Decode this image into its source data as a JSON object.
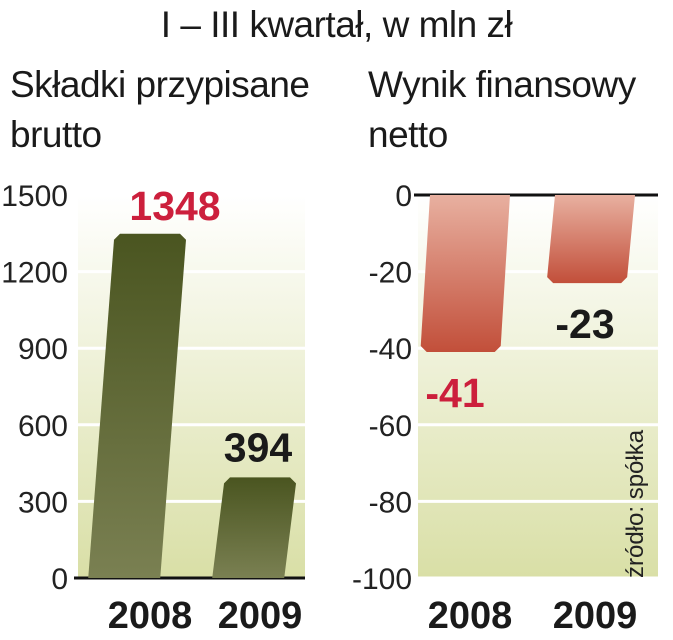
{
  "title": "I – III kwartał, w mln zł",
  "source": "źródło: spółka",
  "colors": {
    "dark_bar": "#5c6a2e",
    "red_bar": "#c85a46",
    "highlight_label": "#cc1f3c",
    "normal_label": "#1a1a1a"
  },
  "chart_data": [
    {
      "type": "bar",
      "title_line1": "Składki przypisane",
      "title_line2": "brutto",
      "categories": [
        "2008",
        "2009"
      ],
      "values": [
        1348,
        394
      ],
      "value_labels": [
        "1348",
        "394"
      ],
      "ylim": [
        0,
        1500
      ],
      "yticks": [
        "1500",
        "1200",
        "900",
        "600",
        "300",
        "0"
      ],
      "grid": true
    },
    {
      "type": "bar",
      "title_line1": "Wynik finansowy",
      "title_line2": "netto",
      "categories": [
        "2008",
        "2009"
      ],
      "values": [
        -41,
        -23
      ],
      "value_labels": [
        "-41",
        "-23"
      ],
      "ylim": [
        -100,
        0
      ],
      "yticks": [
        "0",
        "-20",
        "-40",
        "-60",
        "-80",
        "-100"
      ],
      "grid": true
    }
  ]
}
